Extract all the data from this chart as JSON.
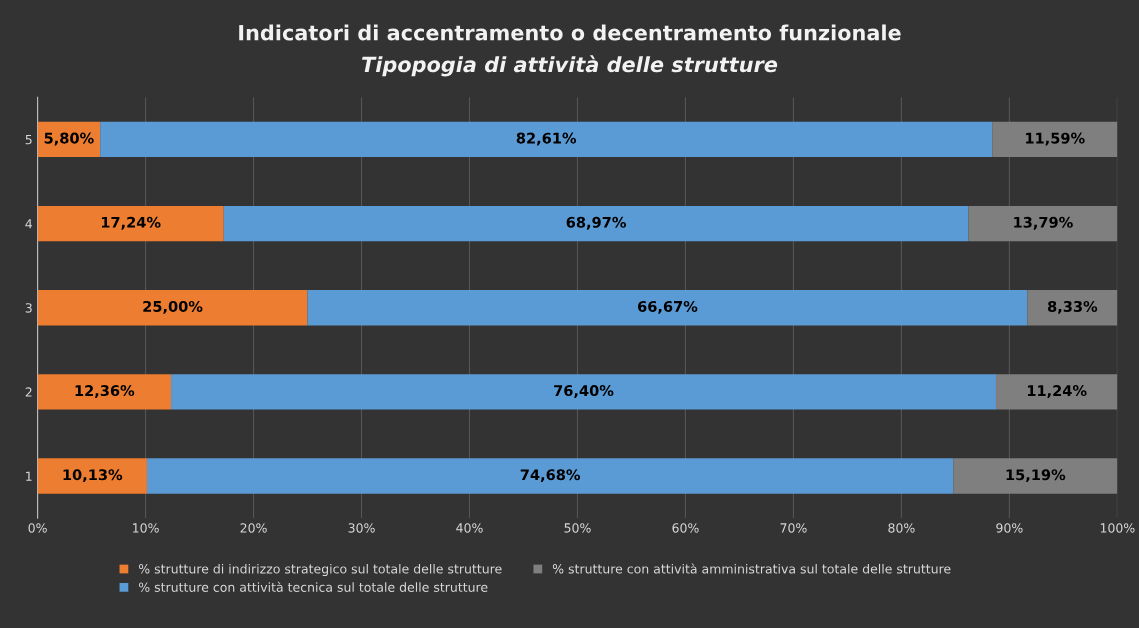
{
  "chart_data": {
    "type": "bar",
    "orientation": "horizontal",
    "stacked": true,
    "title": "Indicatori di accentramento o decentramento funzionale",
    "subtitle": "Tipopogia di attività delle strutture",
    "categories": [
      "5",
      "4",
      "3",
      "2",
      "1"
    ],
    "series": [
      {
        "name": "% strutture di indirizzo strategico sul totale delle strutture",
        "color": "#ed7d31",
        "values": [
          5.8,
          17.24,
          25.0,
          12.36,
          10.13
        ],
        "value_labels": [
          "5,80%",
          "17,24%",
          "25,00%",
          "12,36%",
          "10,13%"
        ]
      },
      {
        "name": "% strutture con attività tecnica sul totale delle strutture",
        "color": "#5b9bd5",
        "values": [
          82.61,
          68.97,
          66.67,
          76.4,
          74.68
        ],
        "value_labels": [
          "82,61%",
          "68,97%",
          "66,67%",
          "76,40%",
          "74,68%"
        ]
      },
      {
        "name": "% strutture con attività amministrativa sul totale delle strutture",
        "color": "#7f7f7f",
        "values": [
          11.59,
          13.79,
          8.33,
          11.24,
          15.19
        ],
        "value_labels": [
          "11,59%",
          "13,79%",
          "8,33%",
          "11,24%",
          "15,19%"
        ]
      }
    ],
    "xlim": [
      0,
      100
    ],
    "xticks": [
      {
        "value": 0,
        "label": "0%"
      },
      {
        "value": 10,
        "label": "10%"
      },
      {
        "value": 20,
        "label": "20%"
      },
      {
        "value": 30,
        "label": "30%"
      },
      {
        "value": 40,
        "label": "40%"
      },
      {
        "value": 50,
        "label": "50%"
      },
      {
        "value": 60,
        "label": "60%"
      },
      {
        "value": 70,
        "label": "70%"
      },
      {
        "value": 80,
        "label": "80%"
      },
      {
        "value": 90,
        "label": "90%"
      },
      {
        "value": 100,
        "label": "100%"
      }
    ],
    "grid": "x",
    "legend": "bottom"
  }
}
